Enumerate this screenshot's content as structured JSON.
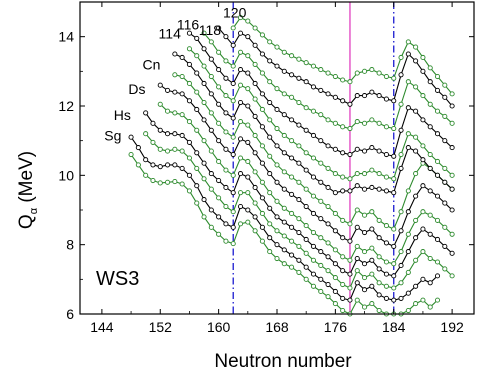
{
  "chart_data": {
    "type": "line",
    "title": "",
    "xlabel": "Neutron number",
    "ylabel_main": "Q",
    "ylabel_sub": "α",
    "ylabel_unit": " (MeV)",
    "annotation": "WS3",
    "xlim": [
      141,
      195
    ],
    "ylim": [
      6,
      15
    ],
    "xticks": [
      144,
      152,
      160,
      168,
      176,
      184,
      192
    ],
    "yticks": [
      6,
      8,
      10,
      12,
      14
    ],
    "grid": false,
    "colors": {
      "green": "#2e8b2e",
      "black": "#000000",
      "magenta": "#e040c0",
      "blue": "#1a1ad0"
    },
    "reference_lines": [
      {
        "x": 162,
        "color": "#1a1ad0",
        "style": "dashdot"
      },
      {
        "x": 178,
        "color": "#e040c0",
        "style": "solid"
      },
      {
        "x": 184,
        "color": "#1a1ad0",
        "style": "dashdot"
      }
    ],
    "element_labels": [
      {
        "text": "Sg",
        "x": 145.5,
        "y": 11.0
      },
      {
        "text": "Hs",
        "x": 146.8,
        "y": 11.6
      },
      {
        "text": "Ds",
        "x": 148.8,
        "y": 12.35
      },
      {
        "text": "Cn",
        "x": 150.8,
        "y": 13.05
      },
      {
        "text": "114",
        "x": 153.3,
        "y": 13.95
      },
      {
        "text": "116",
        "x": 155.8,
        "y": 14.2
      },
      {
        "text": "118",
        "x": 158.8,
        "y": 14.05
      },
      {
        "text": "120",
        "x": 162.2,
        "y": 14.55
      }
    ],
    "series": [
      {
        "name": "",
        "color": "#2e8b2e",
        "x": [
          148,
          149,
          150,
          151,
          152,
          153,
          154,
          155,
          156,
          157,
          158,
          159,
          160,
          161,
          162,
          163,
          164,
          165,
          166,
          167,
          168,
          169,
          170,
          171,
          172,
          173,
          174,
          175,
          176,
          177,
          178,
          179,
          180,
          181,
          182,
          183,
          184,
          185,
          186,
          187,
          188,
          189,
          190
        ],
        "y": [
          10.6,
          10.3,
          10.0,
          9.85,
          9.78,
          9.8,
          9.82,
          9.75,
          9.55,
          9.2,
          8.8,
          8.5,
          8.3,
          8.1,
          8.03,
          8.6,
          8.65,
          8.4,
          8.1,
          7.8,
          7.6,
          7.45,
          7.35,
          7.2,
          7.0,
          6.8,
          6.65,
          6.5,
          6.3,
          6.1,
          6.0,
          6.4,
          6.2,
          6.3,
          6.1,
          6.0,
          6.0,
          6.0,
          6.1,
          6.3,
          6.4,
          6.2,
          6.4
        ]
      },
      {
        "name": "",
        "color": "#000000",
        "x": [
          148,
          149,
          150,
          151,
          152,
          153,
          154,
          155,
          156,
          157,
          158,
          159,
          160,
          161,
          162,
          163,
          164,
          165,
          166,
          167,
          168,
          169,
          170,
          171,
          172,
          173,
          174,
          175,
          176,
          177,
          178,
          179,
          180,
          181,
          182,
          183,
          184,
          185,
          186,
          187,
          188,
          189,
          190
        ],
        "y": [
          11.1,
          10.8,
          10.45,
          10.3,
          10.25,
          10.3,
          10.3,
          10.2,
          10.0,
          9.7,
          9.3,
          9.0,
          8.8,
          8.6,
          8.5,
          9.1,
          9.0,
          8.8,
          8.5,
          8.2,
          8.0,
          7.85,
          7.7,
          7.55,
          7.35,
          7.15,
          7.0,
          6.85,
          6.65,
          6.45,
          6.4,
          6.9,
          6.7,
          6.8,
          6.55,
          6.45,
          6.4,
          6.45,
          6.6,
          6.8,
          7.0,
          6.9,
          7.1
        ]
      },
      {
        "name": "",
        "color": "#2e8b2e",
        "x": [
          150,
          151,
          152,
          153,
          154,
          155,
          156,
          157,
          158,
          159,
          160,
          161,
          162,
          163,
          164,
          165,
          166,
          167,
          168,
          169,
          170,
          171,
          172,
          173,
          174,
          175,
          176,
          177,
          178,
          179,
          180,
          181,
          182,
          183,
          184,
          185,
          186,
          187,
          188,
          189,
          190,
          191,
          192
        ],
        "y": [
          11.2,
          10.95,
          10.75,
          10.7,
          10.75,
          10.7,
          10.5,
          10.2,
          9.9,
          9.6,
          9.35,
          9.1,
          8.95,
          9.5,
          9.5,
          9.2,
          8.9,
          8.6,
          8.4,
          8.25,
          8.1,
          7.95,
          7.75,
          7.55,
          7.4,
          7.25,
          7.05,
          6.85,
          6.75,
          7.25,
          7.05,
          7.15,
          6.9,
          6.8,
          6.75,
          6.9,
          7.2,
          7.55,
          7.8,
          7.6,
          7.5,
          7.3,
          7.1
        ]
      },
      {
        "name": "",
        "color": "#000000",
        "x": [
          150,
          151,
          152,
          153,
          154,
          155,
          156,
          157,
          158,
          159,
          160,
          161,
          162,
          163,
          164,
          165,
          166,
          167,
          168,
          169,
          170,
          171,
          172,
          173,
          174,
          175,
          176,
          177,
          178,
          179,
          180,
          181,
          182,
          183,
          184,
          185,
          186,
          187,
          188,
          189,
          190,
          191,
          192
        ],
        "y": [
          11.8,
          11.5,
          11.3,
          11.2,
          11.2,
          11.15,
          10.95,
          10.65,
          10.35,
          10.05,
          9.85,
          9.65,
          9.5,
          10.05,
          9.95,
          9.65,
          9.35,
          9.05,
          8.8,
          8.65,
          8.5,
          8.35,
          8.15,
          7.95,
          7.8,
          7.65,
          7.45,
          7.25,
          7.15,
          7.6,
          7.45,
          7.55,
          7.3,
          7.15,
          7.1,
          7.4,
          7.8,
          8.2,
          8.45,
          8.3,
          8.15,
          7.95,
          7.75
        ]
      },
      {
        "name": "",
        "color": "#2e8b2e",
        "x": [
          152,
          153,
          154,
          155,
          156,
          157,
          158,
          159,
          160,
          161,
          162,
          163,
          164,
          165,
          166,
          167,
          168,
          169,
          170,
          171,
          172,
          173,
          174,
          175,
          176,
          177,
          178,
          179,
          180,
          181,
          182,
          183,
          184,
          185,
          186,
          187,
          188,
          189,
          190,
          191,
          192
        ],
        "y": [
          12.05,
          11.85,
          11.8,
          11.75,
          11.55,
          11.3,
          11.0,
          10.7,
          10.4,
          10.15,
          10.0,
          10.5,
          10.4,
          10.1,
          9.8,
          9.5,
          9.25,
          9.05,
          8.9,
          8.75,
          8.55,
          8.35,
          8.2,
          8.05,
          7.85,
          7.65,
          7.55,
          7.95,
          7.8,
          7.9,
          7.65,
          7.5,
          7.45,
          7.8,
          8.3,
          8.7,
          8.95,
          8.85,
          8.7,
          8.5,
          8.3
        ]
      },
      {
        "name": "",
        "color": "#000000",
        "x": [
          152,
          153,
          154,
          155,
          156,
          157,
          158,
          159,
          160,
          161,
          162,
          163,
          164,
          165,
          166,
          167,
          168,
          169,
          170,
          171,
          172,
          173,
          174,
          175,
          176,
          177,
          178,
          179,
          180,
          181,
          182,
          183,
          184,
          185,
          186,
          187,
          188,
          189,
          190,
          191,
          192
        ],
        "y": [
          12.6,
          12.45,
          12.4,
          12.35,
          12.15,
          11.9,
          11.6,
          11.3,
          11.0,
          10.75,
          10.6,
          11.05,
          10.95,
          10.65,
          10.35,
          10.05,
          9.8,
          9.6,
          9.45,
          9.3,
          9.1,
          8.9,
          8.75,
          8.6,
          8.4,
          8.2,
          8.1,
          8.5,
          8.35,
          8.45,
          8.2,
          8.05,
          7.95,
          8.4,
          8.95,
          9.4,
          9.7,
          9.55,
          9.4,
          9.2,
          9.0
        ]
      },
      {
        "name": "",
        "color": "#2e8b2e",
        "x": [
          154,
          155,
          156,
          157,
          158,
          159,
          160,
          161,
          162,
          163,
          164,
          165,
          166,
          167,
          168,
          169,
          170,
          171,
          172,
          173,
          174,
          175,
          176,
          177,
          178,
          179,
          180,
          181,
          182,
          183,
          184,
          185,
          186,
          187,
          188,
          189,
          190,
          191,
          192
        ],
        "y": [
          12.9,
          12.85,
          12.65,
          12.4,
          12.1,
          11.8,
          11.5,
          11.25,
          11.1,
          11.55,
          11.45,
          11.15,
          10.85,
          10.55,
          10.3,
          10.1,
          9.95,
          9.8,
          9.6,
          9.4,
          9.25,
          9.1,
          8.9,
          8.7,
          8.6,
          9.0,
          8.85,
          8.95,
          8.7,
          8.55,
          8.45,
          8.95,
          9.55,
          10.05,
          10.35,
          10.2,
          10.0,
          9.8,
          9.6
        ]
      },
      {
        "name": "",
        "color": "#000000",
        "x": [
          154,
          155,
          156,
          157,
          158,
          159,
          160,
          161,
          162,
          163,
          164,
          165,
          166,
          167,
          168,
          169,
          170,
          171,
          172,
          173,
          174,
          175,
          176,
          177,
          178,
          179,
          180,
          181,
          182,
          183,
          184,
          185,
          186,
          187,
          188,
          189,
          190,
          191,
          192
        ],
        "y": [
          13.5,
          13.4,
          13.2,
          12.95,
          12.65,
          12.35,
          12.05,
          11.8,
          11.65,
          12.1,
          12.0,
          11.7,
          11.4,
          11.1,
          10.85,
          10.65,
          10.5,
          10.35,
          10.15,
          9.95,
          9.8,
          9.65,
          9.5,
          9.55,
          9.55,
          9.7,
          9.6,
          9.65,
          9.6,
          9.55,
          9.5,
          10.2,
          10.8,
          10.7,
          10.45,
          10.2,
          10.0,
          9.8,
          9.6
        ]
      },
      {
        "name": "",
        "color": "#2e8b2e",
        "x": [
          156,
          157,
          158,
          159,
          160,
          161,
          162,
          163,
          164,
          165,
          166,
          167,
          168,
          169,
          170,
          171,
          172,
          173,
          174,
          175,
          176,
          177,
          178,
          179,
          180,
          181,
          182,
          183,
          184,
          185,
          186,
          187,
          188,
          189,
          190,
          191,
          192
        ],
        "y": [
          13.65,
          13.45,
          13.15,
          12.85,
          12.55,
          12.3,
          12.15,
          12.6,
          12.5,
          12.2,
          11.9,
          11.6,
          11.35,
          11.15,
          11.0,
          10.85,
          10.65,
          10.5,
          10.35,
          10.2,
          10.05,
          9.95,
          9.9,
          10.05,
          10.05,
          10.15,
          10.05,
          9.95,
          9.9,
          10.6,
          11.2,
          11.1,
          10.85,
          10.6,
          10.4,
          10.2,
          10.0
        ]
      },
      {
        "name": "",
        "color": "#000000",
        "x": [
          156,
          157,
          158,
          159,
          160,
          161,
          162,
          163,
          164,
          165,
          166,
          167,
          168,
          169,
          170,
          171,
          172,
          173,
          174,
          175,
          176,
          177,
          178,
          179,
          180,
          181,
          182,
          183,
          184,
          185,
          186,
          187,
          188,
          189,
          190,
          191,
          192
        ],
        "y": [
          14.1,
          13.95,
          13.65,
          13.35,
          13.05,
          12.8,
          12.65,
          13.05,
          12.95,
          12.65,
          12.35,
          12.1,
          11.9,
          11.75,
          11.6,
          11.45,
          11.3,
          11.15,
          11.0,
          10.85,
          10.75,
          10.65,
          10.6,
          10.75,
          10.7,
          10.8,
          10.7,
          10.6,
          10.55,
          11.3,
          11.95,
          11.85,
          11.6,
          11.4,
          11.2,
          11.0,
          10.8
        ]
      },
      {
        "name": "",
        "color": "#2e8b2e",
        "x": [
          158,
          159,
          160,
          161,
          162,
          163,
          164,
          165,
          166,
          167,
          168,
          169,
          170,
          171,
          172,
          173,
          174,
          175,
          176,
          177,
          178,
          179,
          180,
          181,
          182,
          183,
          184,
          185,
          186,
          187,
          188,
          189,
          190,
          191,
          192
        ],
        "y": [
          14.1,
          13.85,
          13.55,
          13.3,
          13.15,
          13.55,
          13.45,
          13.2,
          12.95,
          12.7,
          12.5,
          12.35,
          12.25,
          12.1,
          11.95,
          11.85,
          11.75,
          11.6,
          11.5,
          11.4,
          11.35,
          11.55,
          11.5,
          11.6,
          11.5,
          11.4,
          11.35,
          12.05,
          12.7,
          12.55,
          12.3,
          12.05,
          11.85,
          11.7,
          11.5
        ]
      },
      {
        "name": "",
        "color": "#000000",
        "x": [
          160,
          161,
          162,
          163,
          164,
          165,
          166,
          167,
          168,
          169,
          170,
          171,
          172,
          173,
          174,
          175,
          176,
          177,
          178,
          179,
          180,
          181,
          182,
          183,
          184,
          185,
          186,
          187,
          188,
          189,
          190,
          191,
          192
        ],
        "y": [
          14.25,
          14.0,
          13.75,
          14.1,
          14.0,
          13.75,
          13.5,
          13.3,
          13.15,
          13.0,
          12.9,
          12.8,
          12.7,
          12.55,
          12.45,
          12.35,
          12.25,
          12.15,
          12.05,
          12.3,
          12.3,
          12.4,
          12.3,
          12.2,
          12.15,
          12.9,
          13.5,
          13.3,
          13.0,
          12.7,
          12.45,
          12.25,
          12.0
        ]
      },
      {
        "name": "",
        "color": "#2e8b2e",
        "x": [
          162,
          163,
          164,
          165,
          166,
          167,
          168,
          169,
          170,
          171,
          172,
          173,
          174,
          175,
          176,
          177,
          178,
          179,
          180,
          181,
          182,
          183,
          184,
          185,
          186,
          187,
          188,
          189,
          190,
          191,
          192
        ],
        "y": [
          14.25,
          14.55,
          14.45,
          14.25,
          14.05,
          13.85,
          13.7,
          13.55,
          13.45,
          13.35,
          13.25,
          13.15,
          13.05,
          12.95,
          12.85,
          12.75,
          12.7,
          12.95,
          13.0,
          13.05,
          12.95,
          12.85,
          12.8,
          13.4,
          13.85,
          13.7,
          13.4,
          13.1,
          12.85,
          12.6,
          12.35
        ]
      }
    ]
  }
}
